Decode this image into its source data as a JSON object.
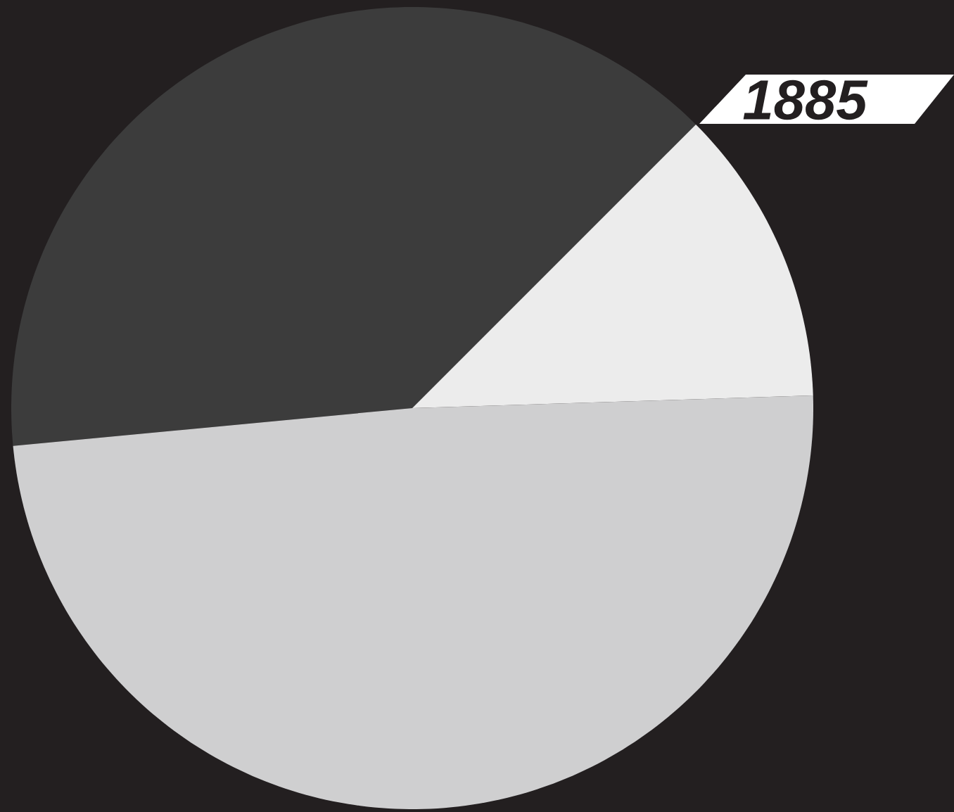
{
  "chart_data": {
    "type": "pie",
    "categories": [
      null,
      null,
      null
    ],
    "values": [
      39,
      49,
      12
    ],
    "colors": [
      "#3c3c3c",
      "#cfcfd0",
      "#ececec"
    ],
    "annotations": [
      "1885"
    ]
  }
}
